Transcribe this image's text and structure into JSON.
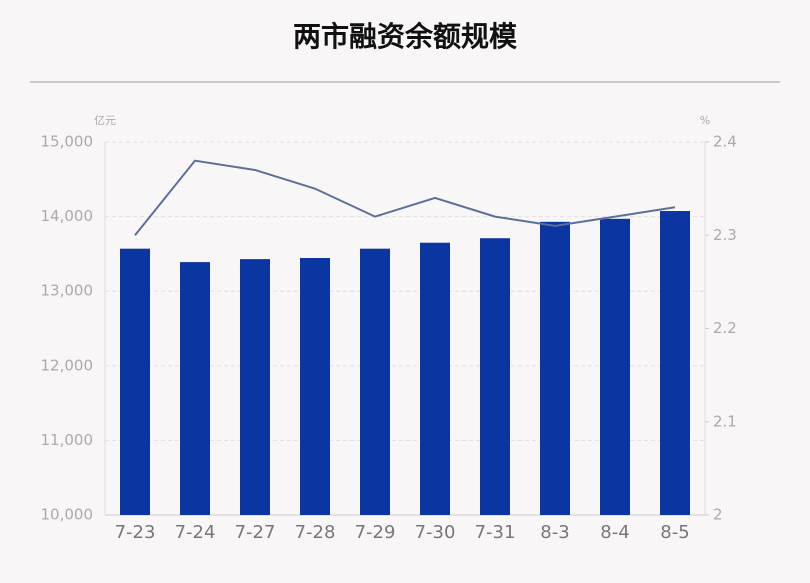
{
  "chart_data": {
    "type": "bar-line",
    "title": "两市融资余额规模",
    "y_unit": "亿元",
    "y2_unit": "%",
    "categories": [
      "7-23",
      "7-24",
      "7-27",
      "7-28",
      "7-29",
      "7-30",
      "7-31",
      "8-3",
      "8-4",
      "8-5"
    ],
    "series": [
      {
        "type": "bar",
        "color": "#0b35a0",
        "values": [
          13570,
          13390,
          13430,
          13445,
          13570,
          13650,
          13710,
          13930,
          13970,
          14075
        ]
      },
      {
        "type": "line",
        "axis": "y2",
        "color": "#5b6f9c",
        "values": [
          2.3,
          2.38,
          2.37,
          2.35,
          2.32,
          2.34,
          2.32,
          2.31,
          2.32,
          2.33
        ]
      }
    ],
    "ylim": [
      10000,
      15000
    ],
    "yticks": [
      {
        "value": 10000,
        "label": "10,000"
      },
      {
        "value": 11000,
        "label": "11,000"
      },
      {
        "value": 12000,
        "label": "12,000"
      },
      {
        "value": 13000,
        "label": "13,000"
      },
      {
        "value": 14000,
        "label": "14,000"
      },
      {
        "value": 15000,
        "label": "15,000"
      }
    ],
    "y2lim": [
      2,
      2.4
    ],
    "y2ticks": [
      2,
      2.1,
      2.2,
      2.3,
      2.4
    ],
    "grid": true
  }
}
